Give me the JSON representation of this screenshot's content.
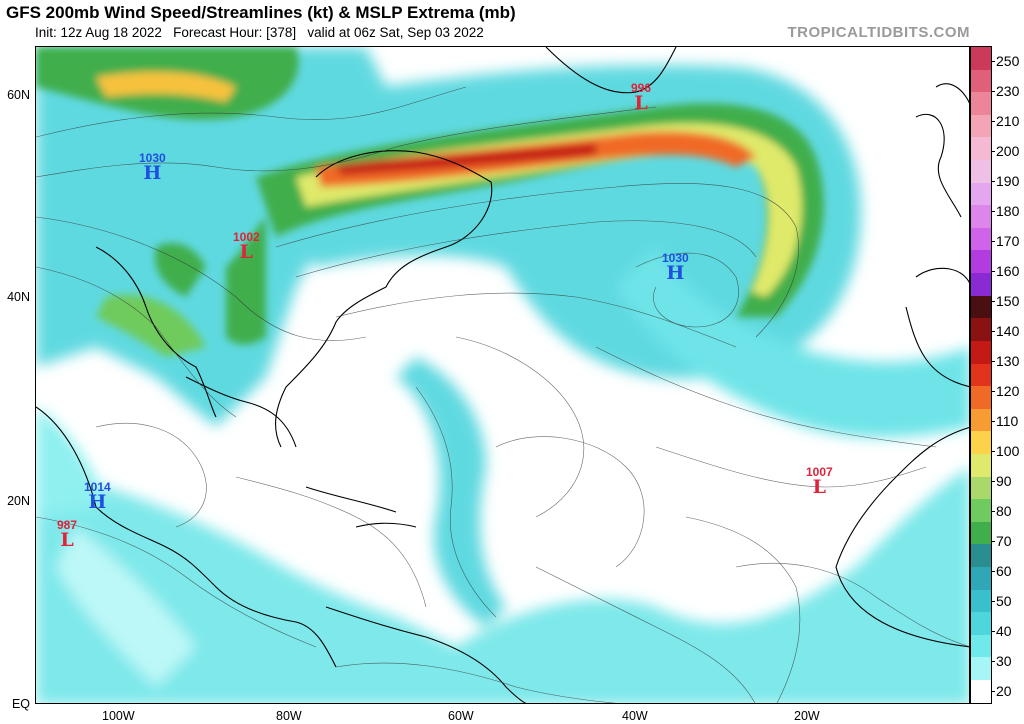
{
  "title": "GFS 200mb Wind Speed/Streamlines (kt) & MSLP Extrema (mb)",
  "subtitle": "Init: 12z Aug 18 2022   Forecast Hour: [378]   valid at 06z Sat, Sep 03 2022",
  "credit": "TROPICALTIDBITS.COM",
  "latitude_labels": [
    "60N",
    "40N",
    "20N",
    "EQ"
  ],
  "longitude_labels": [
    "100W",
    "80W",
    "60W",
    "40W",
    "20W"
  ],
  "colorbar": {
    "ticks": [
      "250",
      "230",
      "210",
      "200",
      "190",
      "180",
      "170",
      "160",
      "150",
      "140",
      "130",
      "120",
      "110",
      "100",
      "90",
      "80",
      "70",
      "60",
      "50",
      "40",
      "30",
      "20"
    ],
    "colors": [
      "#cc3a5a",
      "#e0607a",
      "#ec849a",
      "#f3a5b6",
      "#f5b9d6",
      "#efc0e6",
      "#e4a6ee",
      "#dc86ec",
      "#cf63ea",
      "#b23ce0",
      "#8a2ad2",
      "#4a0f10",
      "#8a1212",
      "#c41a16",
      "#e2341d",
      "#f06a27",
      "#f79b33",
      "#fbd24a",
      "#dfe96b",
      "#a8d96a",
      "#6fcb5d",
      "#3fae4b",
      "#2a8e90",
      "#2fa7b6",
      "#39c0cc",
      "#4fd6dc",
      "#6fe9ea",
      "#a6f6f6",
      "#ffffff"
    ]
  },
  "extrema": [
    {
      "type": "H",
      "value": "1030"
    },
    {
      "type": "L",
      "value": "1002"
    },
    {
      "type": "L",
      "value": "996"
    },
    {
      "type": "H",
      "value": "1030"
    },
    {
      "type": "H",
      "value": "1014"
    },
    {
      "type": "L",
      "value": "987"
    },
    {
      "type": "L",
      "value": "1007"
    }
  ]
}
